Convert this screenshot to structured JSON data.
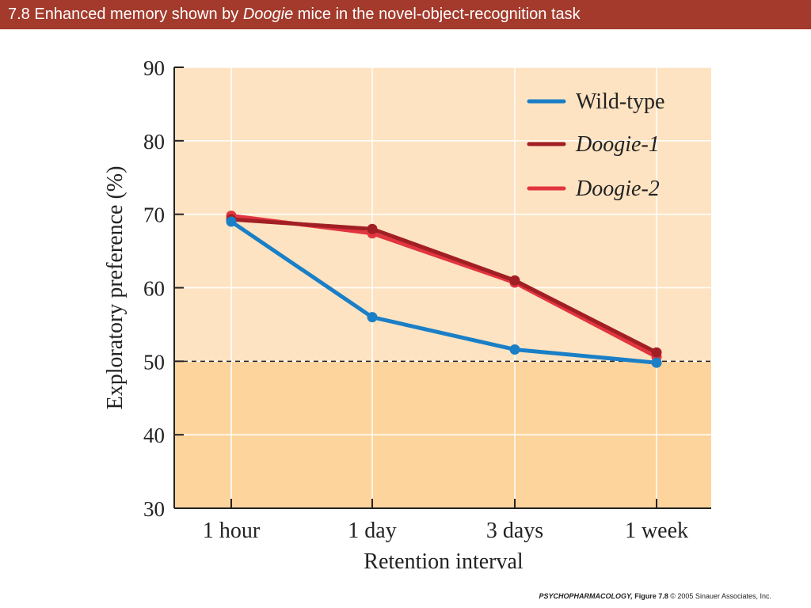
{
  "slide": {
    "title_prefix": "7.8  Enhanced memory shown by",
    "title_italic": "Doogie",
    "title_suffix": "mice in the novel-object-recognition task",
    "credit_book": "PSYCHOPHARMACOLOGY,",
    "credit_figure": "Figure 7.8",
    "credit_rest": "© 2005 Sinauer Associates, Inc."
  },
  "chart_data": {
    "type": "line",
    "title": "",
    "xlabel": "Retention interval",
    "ylabel": "Exploratory preference (%)",
    "categories": [
      "1 hour",
      "1 day",
      "3 days",
      "1 week"
    ],
    "ylim": [
      30,
      90
    ],
    "yticks": [
      30,
      40,
      50,
      60,
      70,
      80,
      90
    ],
    "reference_line": 50,
    "grid": true,
    "legend_position": "top-right",
    "series": [
      {
        "name": "Wild-type",
        "italic": false,
        "color": "#1a7fc6",
        "values": [
          69,
          56,
          51.6,
          49.8
        ]
      },
      {
        "name": "Doogie-1",
        "italic": true,
        "color": "#a11f24",
        "values": [
          69.3,
          68,
          61,
          51.2
        ]
      },
      {
        "name": "Doogie-2",
        "italic": true,
        "color": "#e2353f",
        "values": [
          69.8,
          67.4,
          60.7,
          50.6
        ]
      }
    ]
  }
}
